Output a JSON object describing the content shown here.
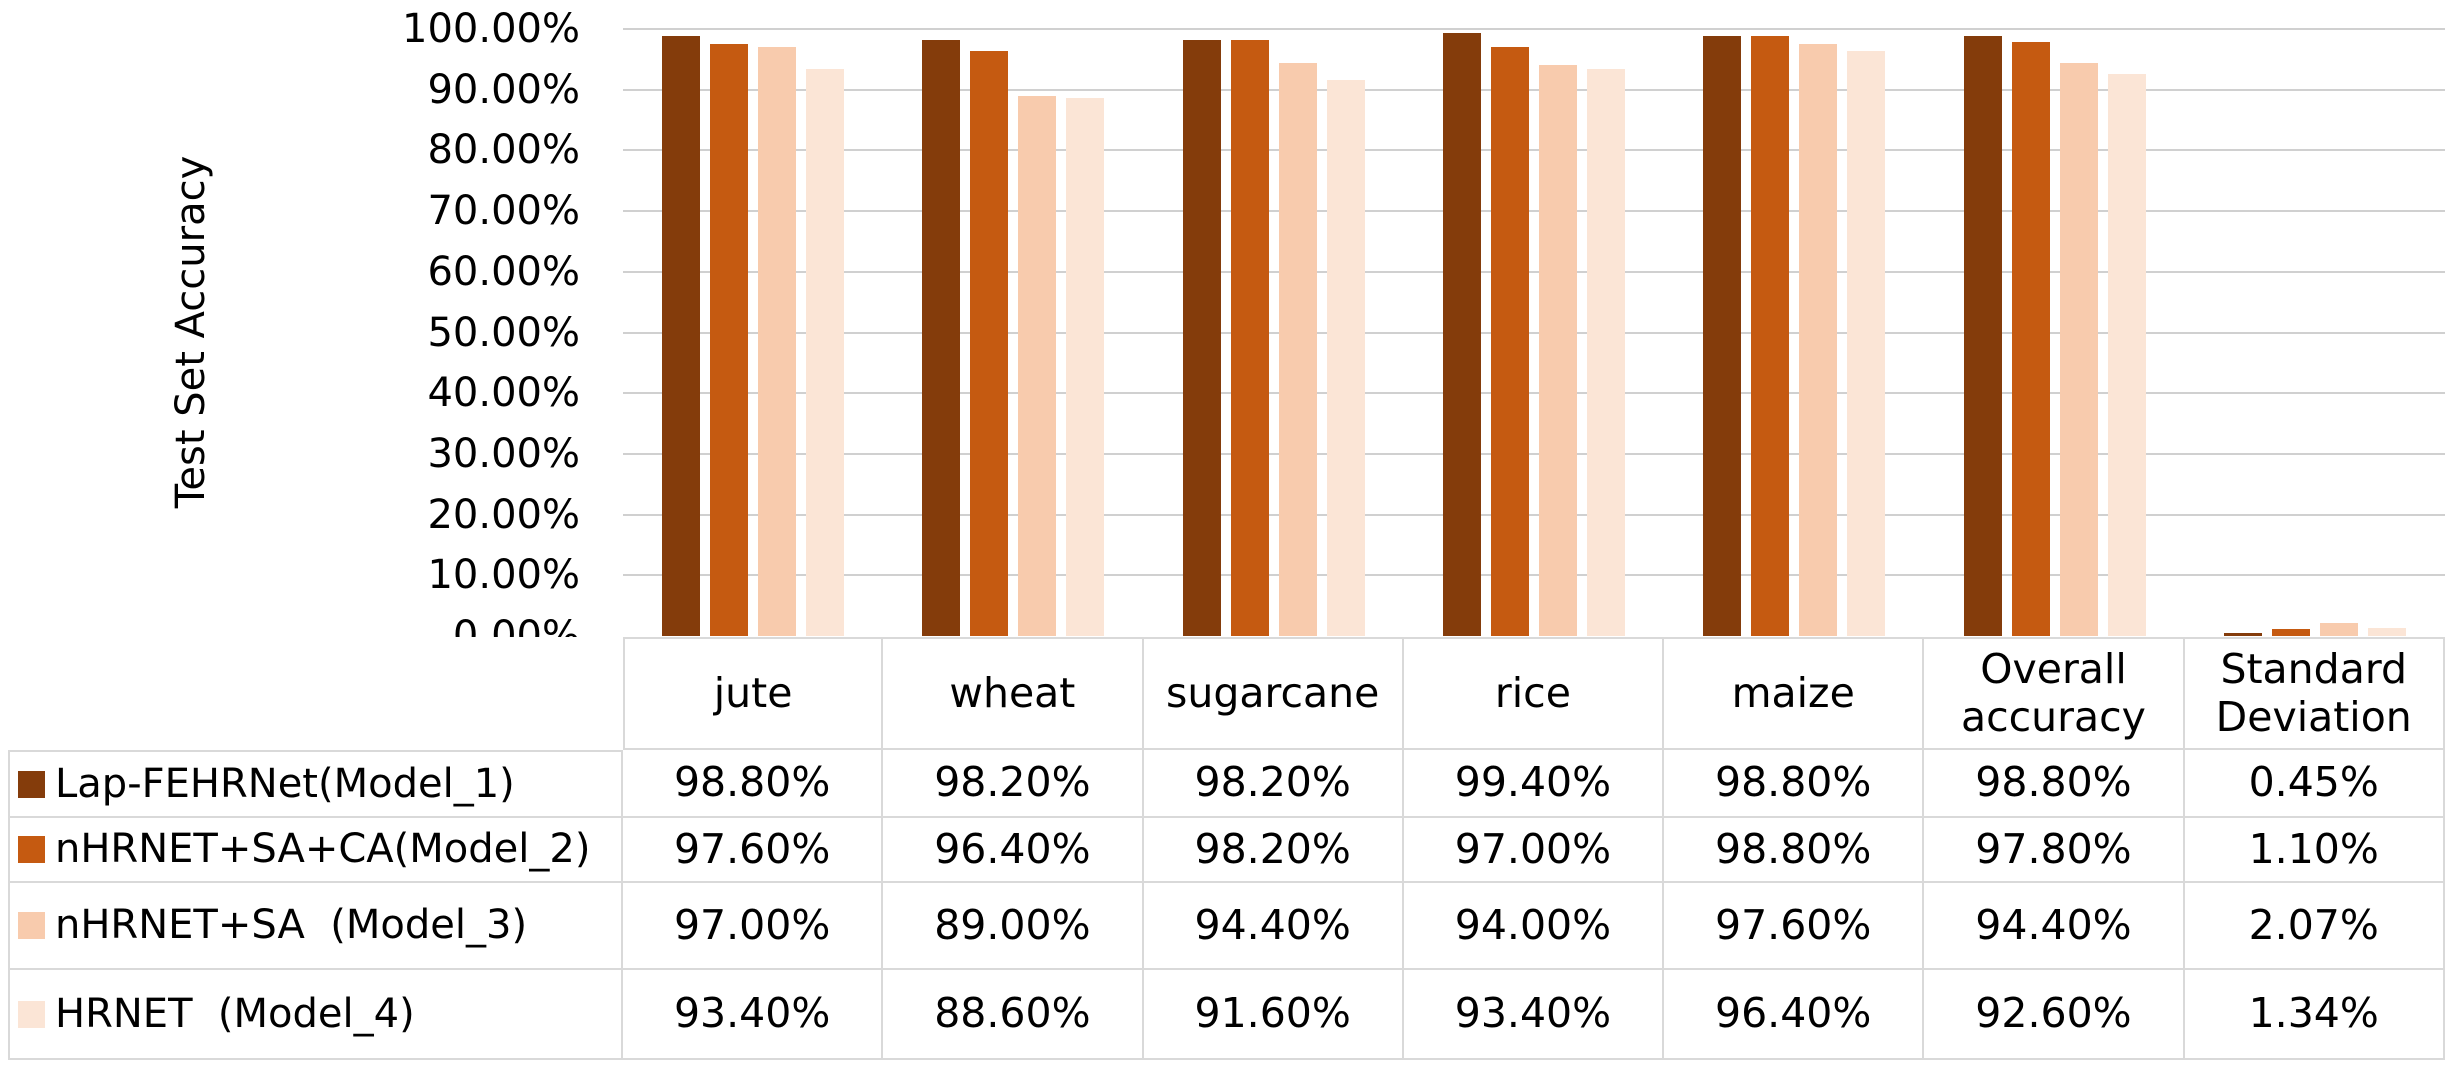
{
  "y_axis": {
    "title": "Test Set Accuracy",
    "ticks": [
      "100.00%",
      "90.00%",
      "80.00%",
      "70.00%",
      "60.00%",
      "50.00%",
      "40.00%",
      "30.00%",
      "20.00%",
      "10.00%",
      "0.00%"
    ]
  },
  "chart_data": {
    "type": "bar",
    "title": "",
    "xlabel": "",
    "ylabel": "Test Set Accuracy",
    "ylim": [
      0,
      100
    ],
    "y_tick_format": "percent",
    "grid": true,
    "legend_position": "table-left",
    "categories": [
      "jute",
      "wheat",
      "sugarcane",
      "rice",
      "maize",
      "Overall accuracy",
      "Standard Deviation"
    ],
    "series": [
      {
        "name": "Lap-FEHRNet(Model_1)",
        "color": "#843C0B",
        "values": [
          98.8,
          98.2,
          98.2,
          99.4,
          98.8,
          98.8,
          0.45
        ]
      },
      {
        "name": "nHRNET+SA+CA(Model_2)",
        "color": "#C55A11",
        "values": [
          97.6,
          96.4,
          98.2,
          97.0,
          98.8,
          97.8,
          1.1
        ]
      },
      {
        "name": "nHRNET+SA  (Model_3)",
        "color": "#F8CBAD",
        "values": [
          97.0,
          89.0,
          94.4,
          94.0,
          97.6,
          94.4,
          2.07
        ]
      },
      {
        "name": "HRNET  (Model_4)",
        "color": "#FBE5D6",
        "values": [
          93.4,
          88.6,
          91.6,
          93.4,
          96.4,
          92.6,
          1.34
        ]
      }
    ]
  },
  "table": {
    "column_headers": [
      "jute",
      "wheat",
      "sugarcane",
      "rice",
      "maize",
      "Overall accuracy",
      "Standard Deviation"
    ],
    "rows": [
      {
        "label": "Lap-FEHRNet(Model_1)",
        "swatch": "#843C0B",
        "values": [
          "98.80%",
          "98.20%",
          "98.20%",
          "99.40%",
          "98.80%",
          "98.80%",
          "0.45%"
        ]
      },
      {
        "label": "nHRNET+SA+CA(Model_2)",
        "swatch": "#C55A11",
        "values": [
          "97.60%",
          "96.40%",
          "98.20%",
          "97.00%",
          "98.80%",
          "97.80%",
          "1.10%"
        ]
      },
      {
        "label": "nHRNET+SA  (Model_3)",
        "swatch": "#F8CBAD",
        "values": [
          "97.00%",
          "89.00%",
          "94.40%",
          "94.00%",
          "97.60%",
          "94.40%",
          "2.07%"
        ]
      },
      {
        "label": "HRNET  (Model_4)",
        "swatch": "#FBE5D6",
        "values": [
          "93.40%",
          "88.60%",
          "91.60%",
          "93.40%",
          "96.40%",
          "92.60%",
          "1.34%"
        ]
      }
    ]
  },
  "colors": {
    "gridline": "#D0D0D0",
    "table_border": "#D9D9D9",
    "text": "#000000",
    "background": "#FFFFFF"
  }
}
